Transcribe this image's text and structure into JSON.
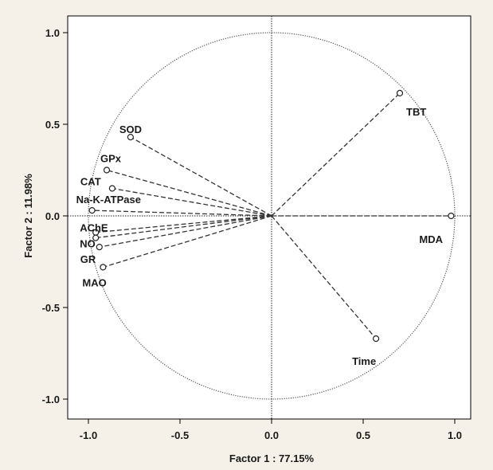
{
  "chart_data": {
    "type": "scatter",
    "subtype": "pca-correlation-circle",
    "xlabel": "Factor 1 : 77.15%",
    "ylabel": "Factor 2 : 11.98%",
    "xlim": [
      -1.1,
      1.1
    ],
    "ylim": [
      -1.1,
      1.1
    ],
    "xticks": [
      "-1.0",
      "-0.5",
      "0.0",
      "0.5",
      "1.0"
    ],
    "yticks": [
      "1.0",
      "0.5",
      "0.0",
      "-0.5",
      "-1.0"
    ],
    "xtick_values": [
      -1.0,
      -0.5,
      0.0,
      0.5,
      1.0
    ],
    "ytick_values": [
      1.0,
      0.5,
      0.0,
      -0.5,
      -1.0
    ],
    "grid": false,
    "unit_circle": true,
    "points": [
      {
        "label": "TBT",
        "x": 0.7,
        "y": 0.67
      },
      {
        "label": "SOD",
        "x": -0.77,
        "y": 0.43
      },
      {
        "label": "GPx",
        "x": -0.9,
        "y": 0.25
      },
      {
        "label": "CAT",
        "x": -0.87,
        "y": 0.15
      },
      {
        "label": "Na-K-ATPase",
        "x": -0.98,
        "y": 0.03
      },
      {
        "label": "MDA",
        "x": 0.98,
        "y": 0.0
      },
      {
        "label": "AChE",
        "x": -0.96,
        "y": -0.09
      },
      {
        "label": "NO",
        "x": -0.96,
        "y": -0.12
      },
      {
        "label": "GR",
        "x": -0.94,
        "y": -0.17
      },
      {
        "label": "MAO",
        "x": -0.92,
        "y": -0.28
      },
      {
        "label": "Time",
        "x": 0.57,
        "y": -0.67
      }
    ]
  }
}
